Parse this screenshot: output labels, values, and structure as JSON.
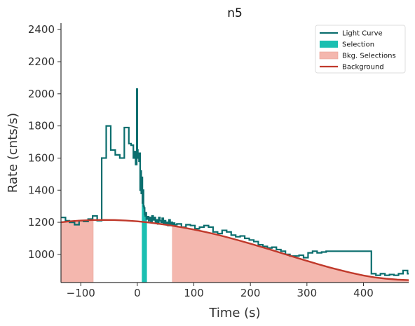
{
  "chart_data": {
    "type": "line",
    "title": "n5",
    "xlabel": "Time (s)",
    "ylabel": "Rate (cnts/s)",
    "xlim": [
      -135,
      480
    ],
    "ylim": [
      825,
      2440
    ],
    "xticks": [
      -100,
      0,
      100,
      200,
      300,
      400
    ],
    "yticks": [
      1000,
      1200,
      1400,
      1600,
      1800,
      2000,
      2200,
      2400
    ],
    "legend_position": "top-right",
    "colors": {
      "light_curve": "#0b6e6e",
      "selection": "#1bbfb1",
      "bkg_selection": "#f4b7ae",
      "background": "#c0392b",
      "axis": "#333333"
    },
    "legend": [
      {
        "label": "Light Curve",
        "kind": "line",
        "color_key": "light_curve"
      },
      {
        "label": "Selection",
        "kind": "patch",
        "color_key": "selection"
      },
      {
        "label": "Bkg. Selections",
        "kind": "patch",
        "color_key": "bkg_selection"
      },
      {
        "label": "Background",
        "kind": "line",
        "color_key": "background"
      }
    ],
    "series": [
      {
        "name": "Light Curve",
        "kind": "step",
        "x": [
          -135,
          -127,
          -120,
          -111,
          -103,
          -95,
          -87,
          -79,
          -71,
          -63,
          -55,
          -47,
          -39,
          -31,
          -23,
          -15,
          -11,
          -7,
          -5,
          -3,
          -1,
          0,
          1,
          2,
          3,
          4,
          5,
          6,
          7,
          8,
          9,
          10,
          11,
          12,
          13,
          14,
          15,
          16,
          18,
          20,
          22,
          24,
          26,
          28,
          30,
          32,
          34,
          36,
          38,
          40,
          42,
          44,
          46,
          48,
          50,
          52,
          54,
          56,
          58,
          60,
          62,
          64,
          66,
          70,
          78,
          86,
          94,
          102,
          110,
          118,
          126,
          134,
          142,
          150,
          158,
          166,
          174,
          182,
          190,
          198,
          206,
          214,
          222,
          230,
          238,
          246,
          254,
          262,
          270,
          278,
          286,
          294,
          302,
          310,
          318,
          326,
          334,
          414,
          422,
          430,
          438,
          446,
          454,
          462,
          470,
          478
        ],
        "y": [
          1230,
          1210,
          1200,
          1185,
          1210,
          1205,
          1220,
          1240,
          1210,
          1600,
          1800,
          1650,
          1620,
          1600,
          1790,
          1690,
          1680,
          1600,
          1640,
          1560,
          2030,
          1650,
          1600,
          1630,
          1580,
          1630,
          1400,
          1520,
          1380,
          1480,
          1320,
          1400,
          1300,
          1290,
          1250,
          1240,
          1260,
          1220,
          1235,
          1210,
          1230,
          1205,
          1240,
          1215,
          1230,
          1200,
          1215,
          1190,
          1230,
          1210,
          1200,
          1225,
          1195,
          1210,
          1190,
          1200,
          1180,
          1215,
          1190,
          1200,
          1180,
          1195,
          1185,
          1190,
          1170,
          1185,
          1180,
          1160,
          1170,
          1180,
          1170,
          1140,
          1130,
          1150,
          1140,
          1120,
          1110,
          1115,
          1100,
          1090,
          1080,
          1060,
          1050,
          1040,
          1045,
          1030,
          1020,
          1000,
          990,
          990,
          995,
          980,
          1010,
          1020,
          1010,
          1015,
          1020,
          880,
          870,
          880,
          870,
          875,
          870,
          880,
          900,
          880
        ]
      },
      {
        "name": "Background",
        "kind": "curve",
        "x": [
          -135,
          -120,
          -100,
          -80,
          -60,
          -40,
          -20,
          0,
          20,
          40,
          60,
          80,
          100,
          120,
          140,
          160,
          180,
          200,
          220,
          240,
          260,
          280,
          300,
          320,
          340,
          360,
          380,
          400,
          420,
          440,
          460,
          480
        ],
        "y": [
          1200,
          1206,
          1211,
          1214,
          1215,
          1214,
          1211,
          1206,
          1199,
          1190,
          1180,
          1168,
          1155,
          1140,
          1124,
          1106,
          1087,
          1067,
          1046,
          1025,
          1003,
          981,
          960,
          939,
          919,
          901,
          884,
          869,
          857,
          849,
          843,
          840
        ]
      }
    ],
    "selection_interval": [
      8,
      17
    ],
    "bkg_intervals": [
      [
        -135,
        -78
      ],
      [
        62,
        480
      ]
    ]
  }
}
